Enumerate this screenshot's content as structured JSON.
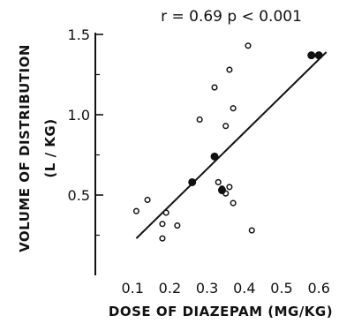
{
  "chart_data": {
    "type": "scatter",
    "title": "r = 0.69   p < 0.001",
    "xlabel": "DOSE OF DIAZEPAM (MG/KG)",
    "ylabel_line1": "VOLUME OF DISTRIBUTION",
    "ylabel_line2": "(L / KG)",
    "xlim": [
      0,
      0.65
    ],
    "ylim": [
      0,
      1.55
    ],
    "x_ticks": [
      {
        "value": 0.1,
        "label": "0.1"
      },
      {
        "value": 0.2,
        "label": "0.2"
      },
      {
        "value": 0.3,
        "label": "0.3"
      },
      {
        "value": 0.4,
        "label": "0.4"
      },
      {
        "value": 0.5,
        "label": "0.5"
      },
      {
        "value": 0.6,
        "label": "0.6"
      }
    ],
    "y_ticks": [
      {
        "value": 0.5,
        "label": "0.5"
      },
      {
        "value": 1.0,
        "label": "1.0"
      },
      {
        "value": 1.5,
        "label": "1.5"
      }
    ],
    "y_minor_ticks": [
      0.25,
      0.75,
      1.25
    ],
    "regression_line": {
      "x": [
        0.11,
        0.62
      ],
      "y": [
        0.23,
        1.39
      ]
    },
    "series": [
      {
        "marker": "open",
        "points": [
          {
            "x": 0.11,
            "y": 0.4
          },
          {
            "x": 0.14,
            "y": 0.47
          },
          {
            "x": 0.18,
            "y": 0.23
          },
          {
            "x": 0.18,
            "y": 0.32
          },
          {
            "x": 0.19,
            "y": 0.39
          },
          {
            "x": 0.22,
            "y": 0.31
          },
          {
            "x": 0.28,
            "y": 0.97
          },
          {
            "x": 0.32,
            "y": 1.17
          },
          {
            "x": 0.33,
            "y": 0.58
          },
          {
            "x": 0.34,
            "y": 0.54
          },
          {
            "x": 0.35,
            "y": 0.51
          },
          {
            "x": 0.35,
            "y": 0.93
          },
          {
            "x": 0.36,
            "y": 1.28
          },
          {
            "x": 0.36,
            "y": 0.55
          },
          {
            "x": 0.37,
            "y": 0.45
          },
          {
            "x": 0.37,
            "y": 1.04
          },
          {
            "x": 0.41,
            "y": 1.43
          },
          {
            "x": 0.42,
            "y": 0.28
          }
        ]
      },
      {
        "marker": "filled",
        "points": [
          {
            "x": 0.26,
            "y": 0.58
          },
          {
            "x": 0.32,
            "y": 0.74
          },
          {
            "x": 0.34,
            "y": 0.53
          },
          {
            "x": 0.58,
            "y": 1.37
          },
          {
            "x": 0.6,
            "y": 1.37
          }
        ]
      }
    ]
  }
}
